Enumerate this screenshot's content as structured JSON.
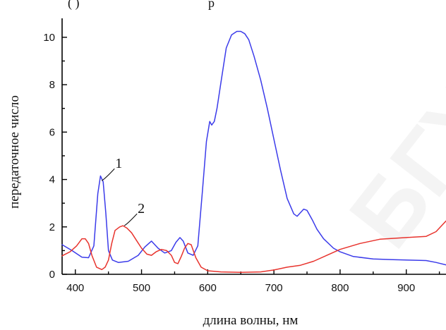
{
  "partial_top_text": "(    )",
  "partial_top_text_right": "р",
  "watermark_text": "БГУ",
  "chart_data": {
    "type": "line",
    "title": "",
    "xlabel": "длина волны, нм",
    "ylabel": "передаточное число",
    "xlim": [
      380,
      960
    ],
    "ylim": [
      0,
      10.8
    ],
    "x_ticks": [
      400,
      500,
      600,
      700,
      800,
      900
    ],
    "y_ticks": [
      0,
      2,
      4,
      6,
      8,
      10
    ],
    "grid": false,
    "legend": "none",
    "series": [
      {
        "name": "1",
        "color": "#3b3bea",
        "x": [
          380,
          395,
          410,
          420,
          428,
          434,
          438,
          442,
          446,
          450,
          456,
          465,
          480,
          495,
          505,
          515,
          525,
          535,
          545,
          552,
          558,
          563,
          570,
          578,
          585,
          592,
          598,
          603,
          606,
          610,
          614,
          620,
          628,
          636,
          644,
          650,
          656,
          662,
          670,
          680,
          690,
          700,
          710,
          720,
          730,
          735,
          740,
          745,
          750,
          758,
          765,
          775,
          790,
          800,
          820,
          850,
          880,
          900,
          930,
          945,
          960
        ],
        "y": [
          1.25,
          1.0,
          0.72,
          0.7,
          1.2,
          3.4,
          4.15,
          3.9,
          2.6,
          1.0,
          0.6,
          0.5,
          0.55,
          0.8,
          1.15,
          1.4,
          1.1,
          0.9,
          1.0,
          1.35,
          1.55,
          1.4,
          0.9,
          0.8,
          1.2,
          3.5,
          5.6,
          6.45,
          6.3,
          6.45,
          7.0,
          8.1,
          9.55,
          10.1,
          10.25,
          10.25,
          10.15,
          9.9,
          9.2,
          8.2,
          7.0,
          5.7,
          4.4,
          3.2,
          2.55,
          2.45,
          2.6,
          2.75,
          2.7,
          2.3,
          1.9,
          1.5,
          1.1,
          0.95,
          0.75,
          0.65,
          0.62,
          0.6,
          0.58,
          0.5,
          0.4
        ]
      },
      {
        "name": "2",
        "color": "#e8332d",
        "x": [
          380,
          392,
          402,
          410,
          415,
          420,
          425,
          432,
          440,
          445,
          450,
          455,
          460,
          467,
          472,
          478,
          485,
          492,
          500,
          508,
          515,
          522,
          530,
          538,
          545,
          550,
          555,
          560,
          565,
          570,
          575,
          582,
          590,
          600,
          620,
          650,
          680,
          700,
          720,
          740,
          760,
          780,
          800,
          830,
          860,
          900,
          930,
          945,
          960
        ],
        "y": [
          0.78,
          0.95,
          1.2,
          1.5,
          1.5,
          1.3,
          0.8,
          0.3,
          0.2,
          0.3,
          0.6,
          1.3,
          1.85,
          2.0,
          2.05,
          1.95,
          1.75,
          1.45,
          1.1,
          0.85,
          0.8,
          0.95,
          1.05,
          1.0,
          0.8,
          0.5,
          0.45,
          0.75,
          1.1,
          1.3,
          1.25,
          0.7,
          0.3,
          0.15,
          0.1,
          0.08,
          0.1,
          0.18,
          0.3,
          0.38,
          0.55,
          0.8,
          1.05,
          1.3,
          1.48,
          1.55,
          1.6,
          1.8,
          2.25
        ]
      }
    ],
    "annotations": [
      {
        "text": "1",
        "series": "1",
        "at_x": 440,
        "at_y": 3.95
      },
      {
        "text": "2",
        "series": "2",
        "at_x": 474,
        "at_y": 2.05
      }
    ]
  }
}
